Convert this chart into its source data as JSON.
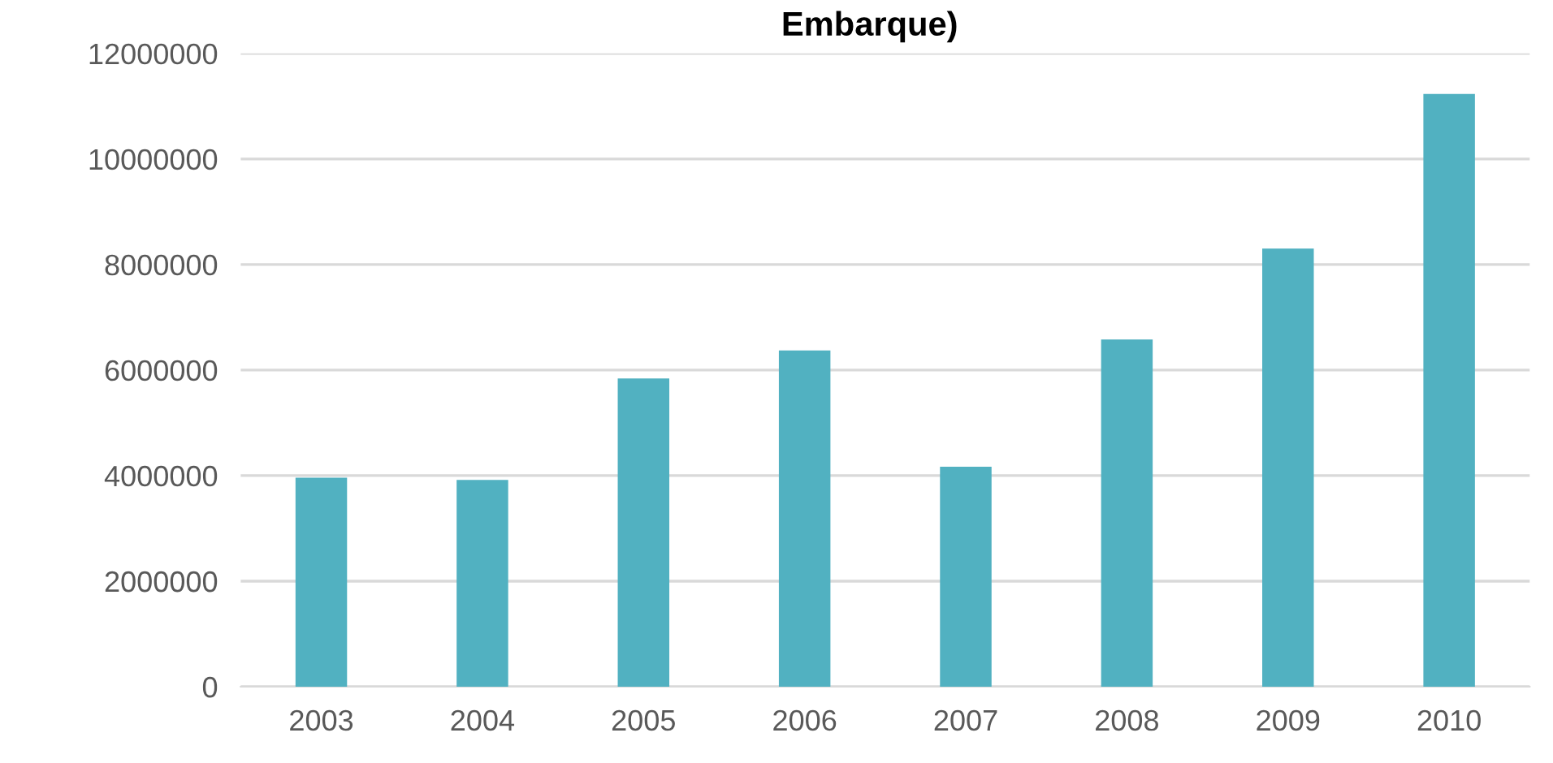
{
  "chart_data": {
    "type": "bar",
    "title": "Embarque)",
    "categories": [
      "2003",
      "2004",
      "2005",
      "2006",
      "2007",
      "2008",
      "2009",
      "2010"
    ],
    "values": [
      3960000,
      3920000,
      5840000,
      6370000,
      4170000,
      6580000,
      8300000,
      11230000
    ],
    "color": "#51b1c1",
    "ylim": [
      0,
      12000000
    ],
    "yticks": [
      0,
      2000000,
      4000000,
      6000000,
      8000000,
      10000000,
      12000000
    ],
    "grid": "y",
    "legend": false
  }
}
